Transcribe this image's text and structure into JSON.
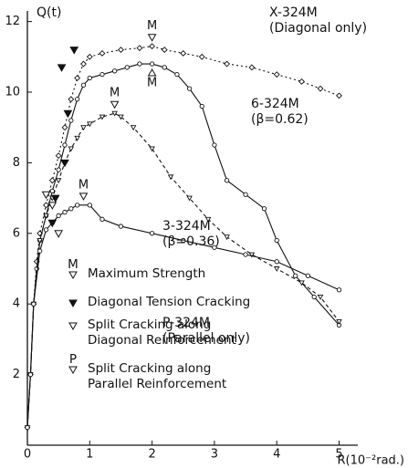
{
  "chart_data": {
    "type": "line",
    "y_label": "Q(t)",
    "x_label": "R(10⁻²rad.)",
    "xlim": [
      0,
      5.3
    ],
    "ylim": [
      0,
      12.3
    ],
    "xticks": [
      0,
      1,
      2,
      3,
      4,
      5
    ],
    "yticks": [
      2,
      4,
      6,
      8,
      10,
      12
    ],
    "series": [
      {
        "name": "X-324M",
        "note": "(Diagonal only)",
        "color": "#111",
        "style": "dotted",
        "marker": "diamond",
        "x": [
          0,
          0.05,
          0.1,
          0.15,
          0.2,
          0.3,
          0.4,
          0.5,
          0.6,
          0.7,
          0.8,
          0.9,
          1.0,
          1.2,
          1.5,
          1.8,
          2.0,
          2.2,
          2.5,
          2.8,
          3.2,
          3.6,
          4.0,
          4.4,
          4.7,
          5.0
        ],
        "values": [
          0.5,
          2,
          4,
          5.2,
          6,
          6.8,
          7.5,
          8.2,
          9,
          9.8,
          10.4,
          10.8,
          11,
          11.1,
          11.2,
          11.25,
          11.3,
          11.2,
          11.1,
          11,
          10.8,
          10.7,
          10.5,
          10.3,
          10.1,
          9.9
        ]
      },
      {
        "name": "6-324M",
        "note": "(β=0.62)",
        "color": "#111",
        "style": "solid",
        "marker": "circle",
        "x": [
          0,
          0.05,
          0.1,
          0.15,
          0.2,
          0.3,
          0.4,
          0.5,
          0.6,
          0.7,
          0.8,
          0.9,
          1.0,
          1.2,
          1.4,
          1.6,
          1.8,
          2.0,
          2.2,
          2.4,
          2.6,
          2.8,
          3.0,
          3.2,
          3.5,
          3.8,
          4.0,
          4.3,
          4.6,
          5.0
        ],
        "values": [
          0.5,
          2,
          4,
          5,
          5.8,
          6.5,
          7.2,
          7.8,
          8.5,
          9.2,
          9.8,
          10.2,
          10.4,
          10.5,
          10.6,
          10.7,
          10.8,
          10.8,
          10.7,
          10.5,
          10.1,
          9.6,
          8.5,
          7.5,
          7.1,
          6.7,
          5.8,
          4.8,
          4.2,
          3.4
        ]
      },
      {
        "name": "3-324M",
        "note": "(β=0.36)",
        "color": "#111",
        "style": "dashed",
        "marker": "triangle",
        "x": [
          0,
          0.05,
          0.1,
          0.2,
          0.3,
          0.4,
          0.5,
          0.6,
          0.7,
          0.8,
          0.9,
          1.0,
          1.2,
          1.4,
          1.5,
          1.7,
          2.0,
          2.3,
          2.6,
          2.9,
          3.2,
          3.6,
          4.0,
          4.4,
          4.7,
          5.0
        ],
        "values": [
          0.5,
          2,
          4,
          5.8,
          6.5,
          7,
          7.5,
          8,
          8.4,
          8.7,
          9,
          9.1,
          9.3,
          9.4,
          9.3,
          9,
          8.4,
          7.6,
          7,
          6.4,
          5.9,
          5.4,
          5,
          4.6,
          4.2,
          3.5
        ]
      },
      {
        "name": "P-324M",
        "note": "(Parallel only)",
        "color": "#111",
        "style": "solid",
        "marker": "circle",
        "x": [
          0,
          0.05,
          0.1,
          0.2,
          0.3,
          0.4,
          0.5,
          0.6,
          0.7,
          0.8,
          1.0,
          1.2,
          1.5,
          2.0,
          2.5,
          3.0,
          3.5,
          4.0,
          4.5,
          5.0
        ],
        "values": [
          0.5,
          2,
          4,
          5.5,
          6.1,
          6.3,
          6.5,
          6.6,
          6.7,
          6.8,
          6.8,
          6.4,
          6.2,
          6,
          5.8,
          5.6,
          5.4,
          5.2,
          4.8,
          4.4
        ]
      }
    ],
    "peak_label": "M",
    "legend": [
      {
        "symbol": "M",
        "marker": "open",
        "lines": [
          "Maximum Strength"
        ]
      },
      {
        "marker": "filled",
        "lines": [
          "Diagonal Tension Cracking"
        ]
      },
      {
        "marker": "open",
        "lines": [
          "Split Cracking along",
          "Diagonal Reinforcement"
        ]
      },
      {
        "symbol": "P",
        "marker": "open",
        "lines": [
          "Split Cracking along",
          "Parallel Reinforcement"
        ]
      }
    ]
  }
}
